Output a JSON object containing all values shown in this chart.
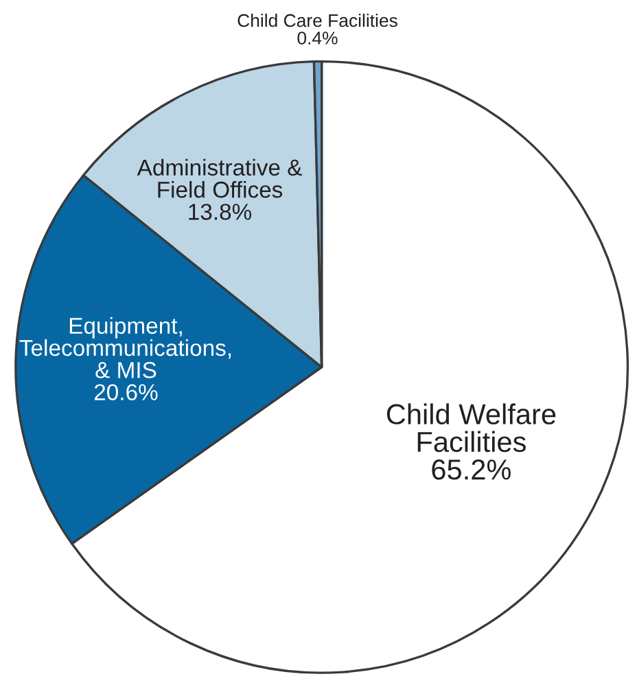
{
  "chart_data": {
    "type": "pie",
    "categories": [
      "Child Welfare\nFacilities",
      "Equipment,\nTelecommunications,\n& MIS",
      "Administrative &\nField Offices",
      "Child Care Facilities"
    ],
    "values": [
      65.2,
      20.6,
      13.8,
      0.4
    ],
    "colors": [
      "#ffffff",
      "#0767a3",
      "#bcd6e6",
      "#6fa3cc"
    ],
    "value_labels": [
      "65.2%",
      "20.6%",
      "13.8%",
      "0.4%"
    ],
    "legend": false
  }
}
